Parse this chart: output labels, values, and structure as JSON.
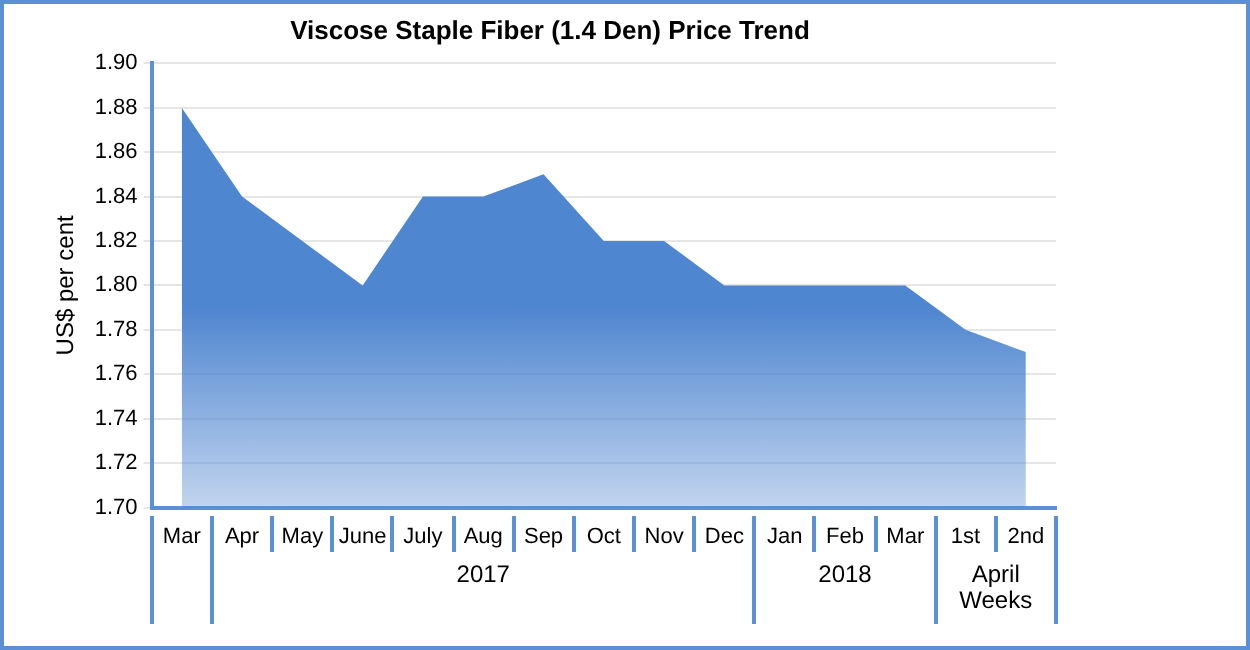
{
  "chart_data": {
    "type": "area",
    "title": "Viscose Staple Fiber (1.4 Den) Price Trend",
    "ylabel": "US$ per cent",
    "categories": [
      "Mar",
      "Apr",
      "May",
      "June",
      "July",
      "Aug",
      "Sep",
      "Oct",
      "Nov",
      "Dec",
      "Jan",
      "Feb",
      "Mar",
      "1st",
      "2nd"
    ],
    "series": [
      {
        "color": "#4f86d0",
        "values": [
          1.88,
          1.84,
          1.82,
          1.8,
          1.84,
          1.84,
          1.85,
          1.82,
          1.82,
          1.8,
          1.8,
          1.8,
          1.8,
          1.78,
          1.77
        ]
      }
    ],
    "ylim": [
      1.7,
      1.9
    ],
    "yticks": [
      {
        "value": 1.7,
        "label": "1.70"
      },
      {
        "value": 1.72,
        "label": "1.72"
      },
      {
        "value": 1.74,
        "label": "1.74"
      },
      {
        "value": 1.76,
        "label": "1.76"
      },
      {
        "value": 1.78,
        "label": "1.78"
      },
      {
        "value": 1.8,
        "label": "1.80"
      },
      {
        "value": 1.82,
        "label": "1.82"
      },
      {
        "value": 1.84,
        "label": "1.84"
      },
      {
        "value": 1.86,
        "label": "1.86"
      },
      {
        "value": 1.88,
        "label": "1.88"
      },
      {
        "value": 1.9,
        "label": "1.90"
      }
    ],
    "annotations": [
      "2017",
      "2018",
      "April\nWeeks"
    ],
    "grid": "y",
    "legend": false,
    "marker": "none"
  }
}
